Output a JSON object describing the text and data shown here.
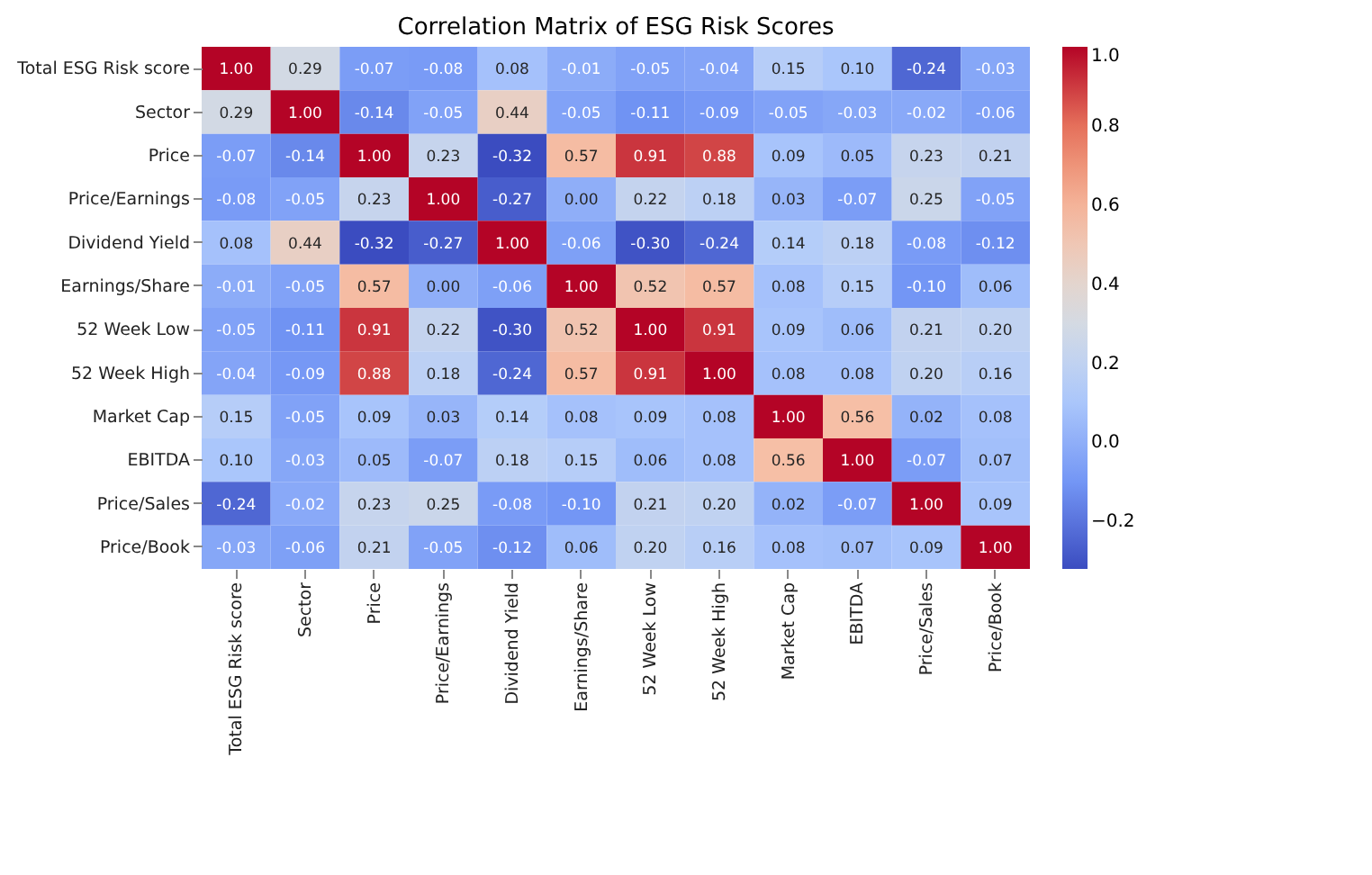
{
  "chart_data": {
    "type": "heatmap",
    "title": "Correlation Matrix of ESG Risk Scores",
    "categories": [
      "Total ESG Risk score",
      "Sector",
      "Price",
      "Price/Earnings",
      "Dividend Yield",
      "Earnings/Share",
      "52 Week Low",
      "52 Week High",
      "Market Cap",
      "EBITDA",
      "Price/Sales",
      "Price/Book"
    ],
    "y_categories": [
      "Total ESG Risk score",
      "Sector",
      "Price",
      "Price/Earnings",
      "Dividend Yield",
      "Earnings/Share",
      "52 Week Low",
      "52 Week High",
      "Market Cap",
      "EBITDA",
      "Price/Sales",
      "Price/Book"
    ],
    "cells": [
      [
        1.0,
        0.29,
        -0.07,
        -0.08,
        0.08,
        -0.01,
        -0.05,
        -0.04,
        0.15,
        0.1,
        -0.24,
        -0.03
      ],
      [
        0.29,
        1.0,
        -0.14,
        -0.05,
        0.44,
        -0.05,
        -0.11,
        -0.09,
        -0.05,
        -0.03,
        -0.02,
        -0.06
      ],
      [
        -0.07,
        -0.14,
        1.0,
        0.23,
        -0.32,
        0.57,
        0.91,
        0.88,
        0.09,
        0.05,
        0.23,
        0.21
      ],
      [
        -0.08,
        -0.05,
        0.23,
        1.0,
        -0.27,
        0.0,
        0.22,
        0.18,
        0.03,
        -0.07,
        0.25,
        -0.05
      ],
      [
        0.08,
        0.44,
        -0.32,
        -0.27,
        1.0,
        -0.06,
        -0.3,
        -0.24,
        0.14,
        0.18,
        -0.08,
        -0.12
      ],
      [
        -0.01,
        -0.05,
        0.57,
        0.0,
        -0.06,
        1.0,
        0.52,
        0.57,
        0.08,
        0.15,
        -0.1,
        0.06
      ],
      [
        -0.05,
        -0.11,
        0.91,
        0.22,
        -0.3,
        0.52,
        1.0,
        0.91,
        0.09,
        0.06,
        0.21,
        0.2
      ],
      [
        -0.04,
        -0.09,
        0.88,
        0.18,
        -0.24,
        0.57,
        0.91,
        1.0,
        0.08,
        0.08,
        0.2,
        0.16
      ],
      [
        0.15,
        -0.05,
        0.09,
        0.03,
        0.14,
        0.08,
        0.09,
        0.08,
        1.0,
        0.56,
        0.02,
        0.08
      ],
      [
        0.1,
        -0.03,
        0.05,
        -0.07,
        0.18,
        0.15,
        0.06,
        0.08,
        0.56,
        1.0,
        -0.07,
        0.07
      ],
      [
        -0.24,
        -0.02,
        0.23,
        0.25,
        -0.08,
        -0.1,
        0.21,
        0.2,
        0.02,
        -0.07,
        1.0,
        0.09
      ],
      [
        -0.03,
        -0.06,
        0.21,
        -0.05,
        -0.12,
        0.06,
        0.2,
        0.16,
        0.08,
        0.07,
        0.09,
        1.0
      ]
    ],
    "cell_labels": [
      [
        "1.00",
        "0.29",
        "-0.07",
        "-0.08",
        "0.08",
        "-0.01",
        "-0.05",
        "-0.04",
        "0.15",
        "0.10",
        "-0.24",
        "-0.03"
      ],
      [
        "0.29",
        "1.00",
        "-0.14",
        "-0.05",
        "0.44",
        "-0.05",
        "-0.11",
        "-0.09",
        "-0.05",
        "-0.03",
        "-0.02",
        "-0.06"
      ],
      [
        "-0.07",
        "-0.14",
        "1.00",
        "0.23",
        "-0.32",
        "0.57",
        "0.91",
        "0.88",
        "0.09",
        "0.05",
        "0.23",
        "0.21"
      ],
      [
        "-0.08",
        "-0.05",
        "0.23",
        "1.00",
        "-0.27",
        "0.00",
        "0.22",
        "0.18",
        "0.03",
        "-0.07",
        "0.25",
        "-0.05"
      ],
      [
        "0.08",
        "0.44",
        "-0.32",
        "-0.27",
        "1.00",
        "-0.06",
        "-0.30",
        "-0.24",
        "0.14",
        "0.18",
        "-0.08",
        "-0.12"
      ],
      [
        "-0.01",
        "-0.05",
        "0.57",
        "0.00",
        "-0.06",
        "1.00",
        "0.52",
        "0.57",
        "0.08",
        "0.15",
        "-0.10",
        "0.06"
      ],
      [
        "-0.05",
        "-0.11",
        "0.91",
        "0.22",
        "-0.30",
        "0.52",
        "1.00",
        "0.91",
        "0.09",
        "0.06",
        "0.21",
        "0.20"
      ],
      [
        "-0.04",
        "-0.09",
        "0.88",
        "0.18",
        "-0.24",
        "0.57",
        "0.91",
        "1.00",
        "0.08",
        "0.08",
        "0.20",
        "0.16"
      ],
      [
        "0.15",
        "-0.05",
        "0.09",
        "0.03",
        "0.14",
        "0.08",
        "0.09",
        "0.08",
        "1.00",
        "0.56",
        "0.02",
        "0.08"
      ],
      [
        "0.10",
        "-0.03",
        "0.05",
        "-0.07",
        "0.18",
        "0.15",
        "0.06",
        "0.08",
        "0.56",
        "1.00",
        "-0.07",
        "0.07"
      ],
      [
        "-0.24",
        "-0.02",
        "0.23",
        "0.25",
        "-0.08",
        "-0.10",
        "0.21",
        "0.20",
        "0.02",
        "-0.07",
        "1.00",
        "0.09"
      ],
      [
        "-0.03",
        "-0.06",
        "0.21",
        "-0.05",
        "-0.12",
        "0.06",
        "0.20",
        "0.16",
        "0.08",
        "0.07",
        "0.09",
        "1.00"
      ]
    ],
    "clim": [
      -0.32,
      1.0
    ],
    "cticks": [
      {
        "value": -0.2,
        "label": "−0.2"
      },
      {
        "value": 0.0,
        "label": "0.0"
      },
      0.2,
      0.4,
      0.6,
      0.8,
      {
        "value": 1.0,
        "label": "1.0"
      }
    ]
  }
}
